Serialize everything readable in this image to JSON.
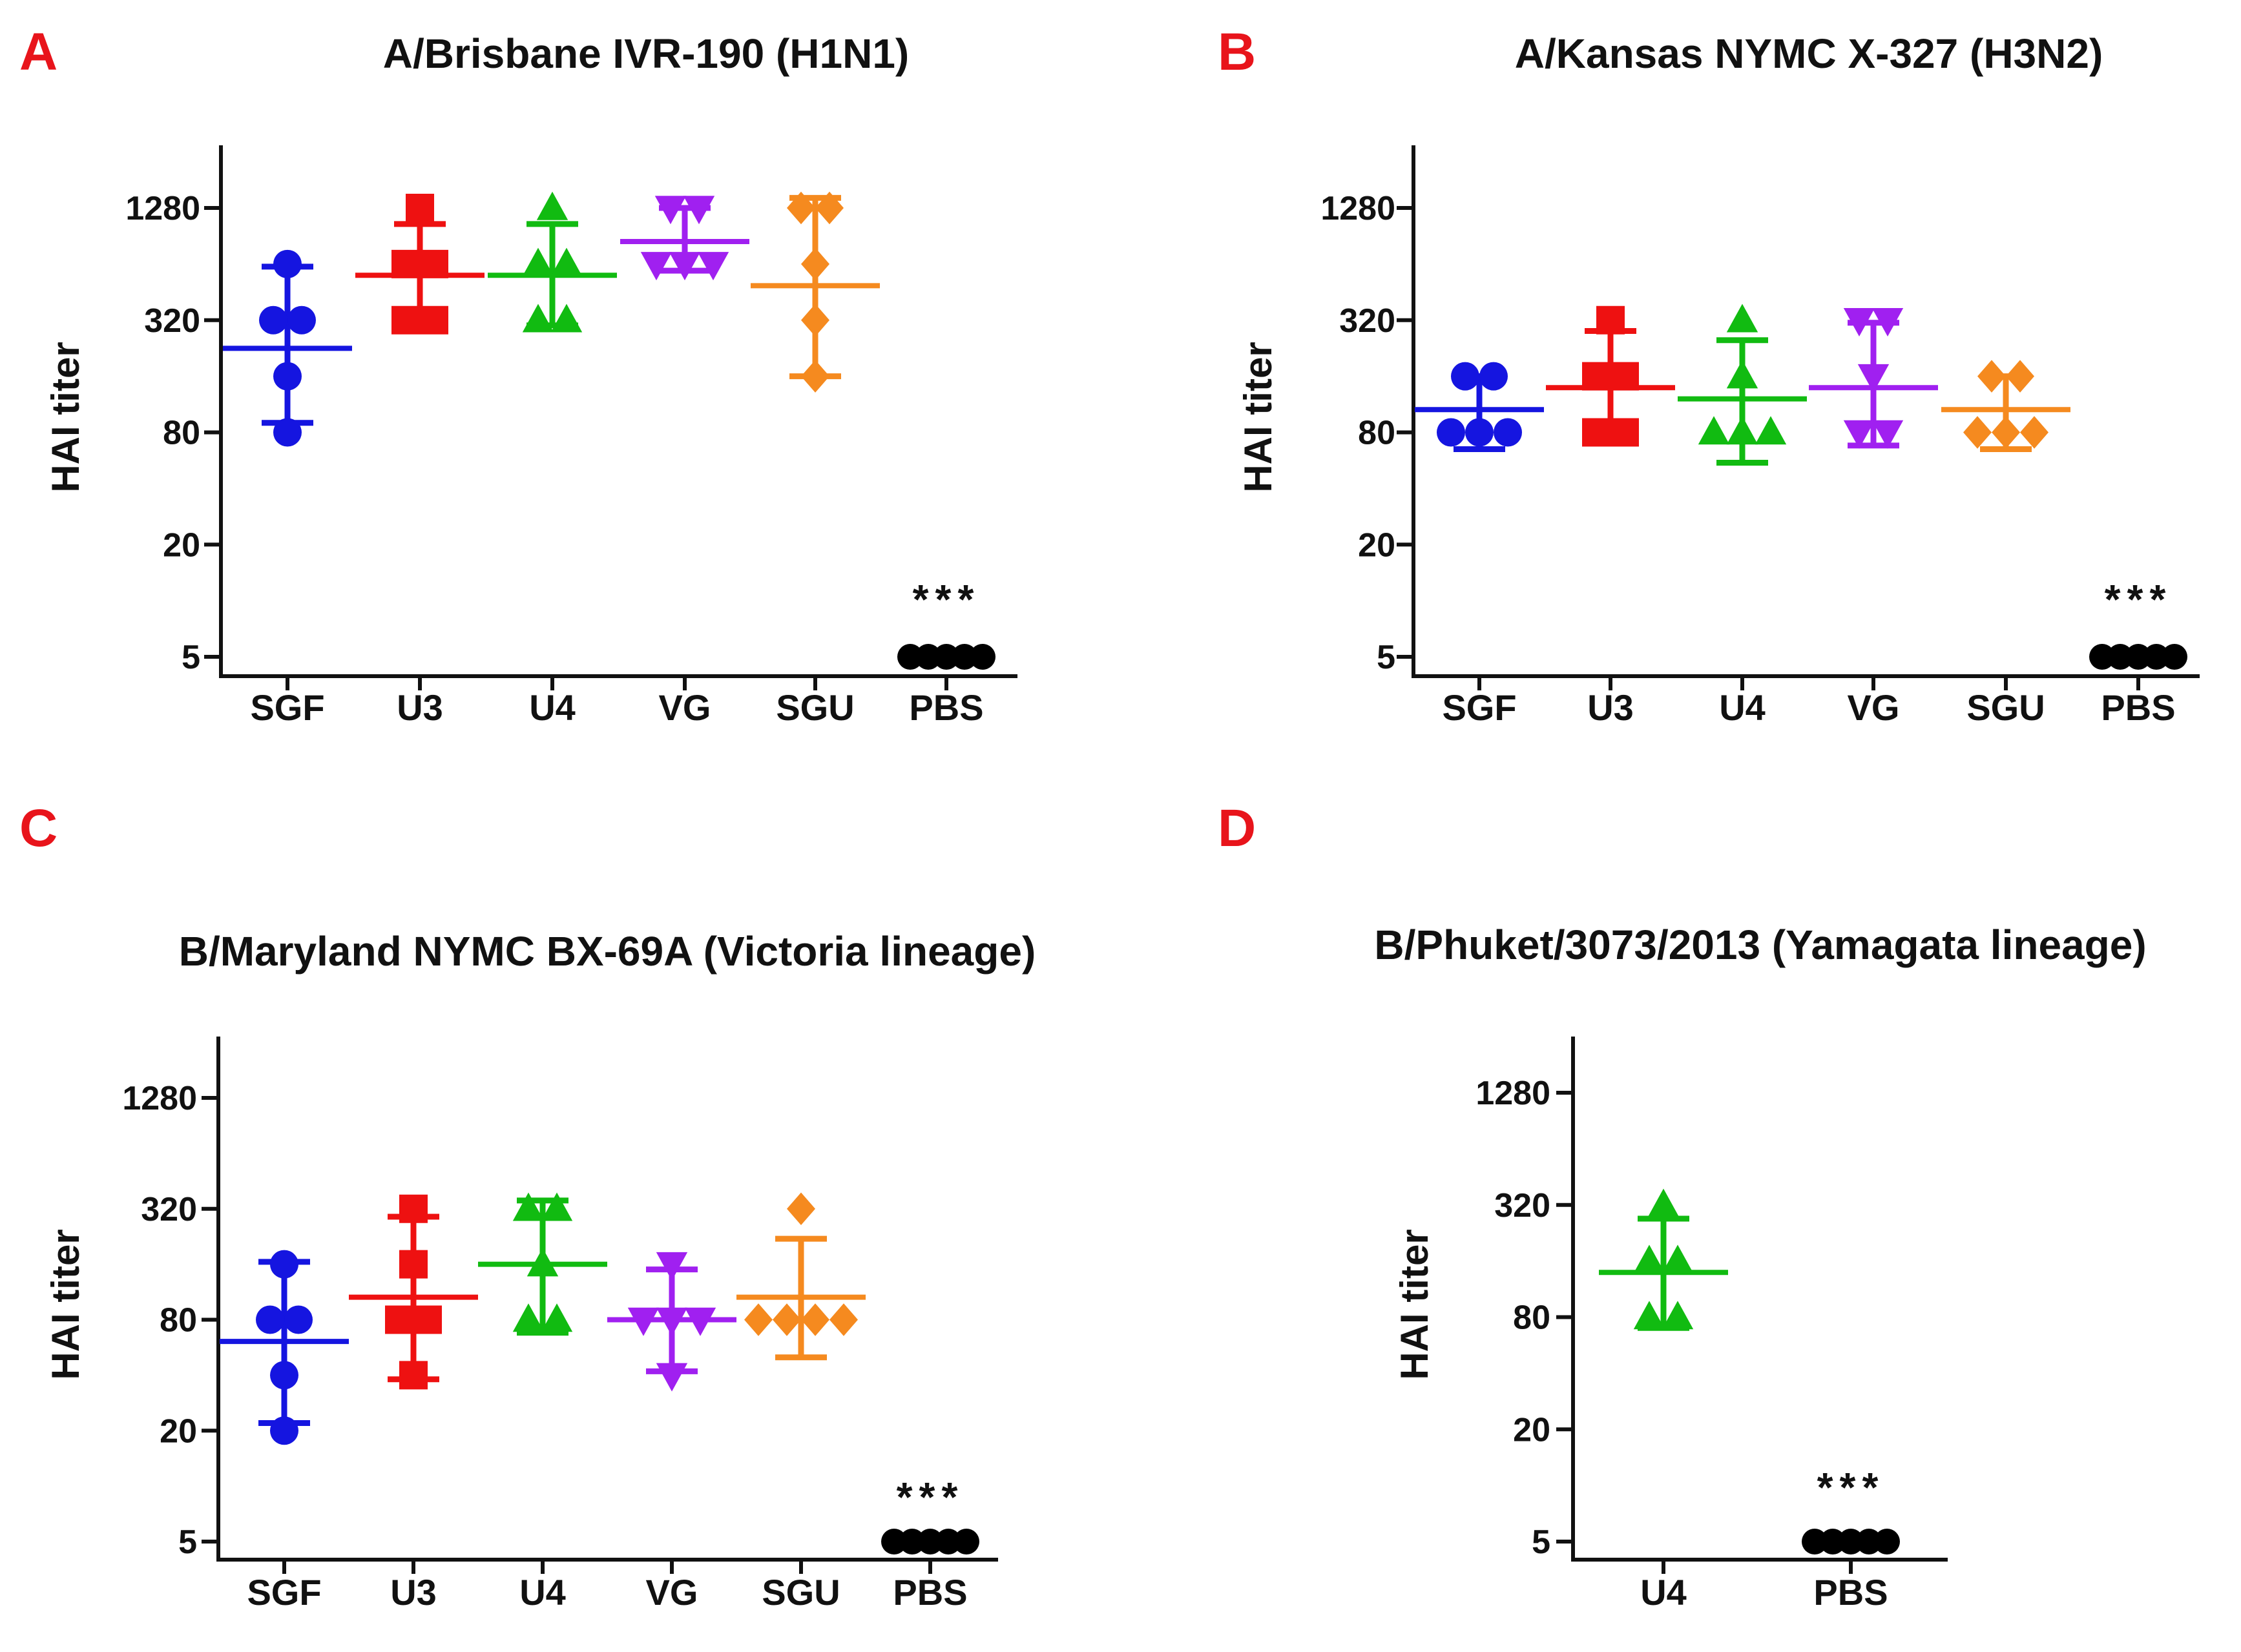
{
  "chart_data": [
    {
      "panel_label": "A",
      "type": "scatter",
      "title": "A/Brisbane IVR-190 (H1N1)",
      "xlabel": "",
      "ylabel": "HAI titer",
      "yscale": "log2",
      "ylim": [
        4,
        2300
      ],
      "yticks": [
        5,
        20,
        80,
        320,
        1280
      ],
      "ytick_labels": [
        "5",
        "20",
        "80",
        "320",
        "1280"
      ],
      "categories": [
        "SGF",
        "U3",
        "U4",
        "VG",
        "SGU",
        "PBS"
      ],
      "series": [
        {
          "name": "SGF",
          "color": "#1515e0",
          "marker": "circle",
          "points": [
            80,
            160,
            320,
            320,
            640
          ],
          "mean": 226,
          "sd_low": 90,
          "sd_high": 620
        },
        {
          "name": "U3",
          "color": "#ee1111",
          "marker": "square",
          "points": [
            320,
            320,
            640,
            640,
            1280
          ],
          "mean": 557,
          "sd_low": 320,
          "sd_high": 1050
        },
        {
          "name": "U4",
          "color": "#11bb11",
          "marker": "triangle",
          "points": [
            320,
            320,
            640,
            640,
            1280
          ],
          "mean": 557,
          "sd_low": 300,
          "sd_high": 1050
        },
        {
          "name": "VG",
          "color": "#a020f0",
          "marker": "triangle-down",
          "points": [
            640,
            640,
            640,
            1280,
            1280
          ],
          "mean": 845,
          "sd_low": 590,
          "sd_high": 1280
        },
        {
          "name": "SGU",
          "color": "#f58a1f",
          "marker": "diamond",
          "points": [
            160,
            320,
            640,
            1280,
            1280
          ],
          "mean": 490,
          "sd_low": 160,
          "sd_high": 1450
        },
        {
          "name": "PBS",
          "color": "#000000",
          "marker": "circle",
          "points": [
            5,
            5,
            5,
            5,
            5
          ],
          "mean": 5,
          "sd_low": 5,
          "sd_high": 5
        }
      ],
      "annotations": [
        {
          "category": "PBS",
          "text": "***"
        }
      ]
    },
    {
      "panel_label": "B",
      "type": "scatter",
      "title": "A/Kansas NYMC X-327 (H3N2)",
      "xlabel": "",
      "ylabel": "HAI titer",
      "yscale": "log2",
      "ylim": [
        4,
        2300
      ],
      "yticks": [
        5,
        20,
        80,
        320,
        1280
      ],
      "ytick_labels": [
        "5",
        "20",
        "80",
        "320",
        "1280"
      ],
      "categories": [
        "SGF",
        "U3",
        "U4",
        "VG",
        "SGU",
        "PBS"
      ],
      "series": [
        {
          "name": "SGF",
          "color": "#1515e0",
          "marker": "circle",
          "points": [
            80,
            80,
            80,
            160,
            160
          ],
          "mean": 106,
          "sd_low": 65,
          "sd_high": 160
        },
        {
          "name": "U3",
          "color": "#ee1111",
          "marker": "square",
          "points": [
            80,
            80,
            160,
            160,
            320
          ],
          "mean": 139,
          "sd_low": 70,
          "sd_high": 280
        },
        {
          "name": "U4",
          "color": "#11bb11",
          "marker": "triangle",
          "points": [
            80,
            80,
            80,
            160,
            320
          ],
          "mean": 121,
          "sd_low": 55,
          "sd_high": 250
        },
        {
          "name": "VG",
          "color": "#a020f0",
          "marker": "triangle-down",
          "points": [
            80,
            80,
            160,
            320,
            320
          ],
          "mean": 139,
          "sd_low": 68,
          "sd_high": 310
        },
        {
          "name": "SGU",
          "color": "#f58a1f",
          "marker": "diamond",
          "points": [
            80,
            80,
            80,
            160,
            160
          ],
          "mean": 106,
          "sd_low": 65,
          "sd_high": 160
        },
        {
          "name": "PBS",
          "color": "#000000",
          "marker": "circle",
          "points": [
            5,
            5,
            5,
            5,
            5
          ],
          "mean": 5,
          "sd_low": 5,
          "sd_high": 5
        }
      ],
      "annotations": [
        {
          "category": "PBS",
          "text": "***"
        }
      ]
    },
    {
      "panel_label": "C",
      "type": "scatter",
      "title": "B/Maryland NYMC BX-69A (Victoria lineage)",
      "xlabel": "",
      "ylabel": "HAI titer",
      "yscale": "log2",
      "ylim": [
        4,
        2300
      ],
      "yticks": [
        5,
        20,
        80,
        320,
        1280
      ],
      "ytick_labels": [
        "5",
        "20",
        "80",
        "320",
        "1280"
      ],
      "categories": [
        "SGF",
        "U3",
        "U4",
        "VG",
        "SGU",
        "PBS"
      ],
      "series": [
        {
          "name": "SGF",
          "color": "#1515e0",
          "marker": "circle",
          "points": [
            20,
            40,
            80,
            80,
            160
          ],
          "mean": 61,
          "sd_low": 22,
          "sd_high": 165
        },
        {
          "name": "U3",
          "color": "#ee1111",
          "marker": "square",
          "points": [
            40,
            80,
            80,
            160,
            320
          ],
          "mean": 106,
          "sd_low": 38,
          "sd_high": 290
        },
        {
          "name": "U4",
          "color": "#11bb11",
          "marker": "triangle",
          "points": [
            80,
            80,
            160,
            320,
            320
          ],
          "mean": 160,
          "sd_low": 68,
          "sd_high": 355
        },
        {
          "name": "VG",
          "color": "#a020f0",
          "marker": "triangle-down",
          "points": [
            40,
            80,
            80,
            80,
            160
          ],
          "mean": 80,
          "sd_low": 42,
          "sd_high": 150
        },
        {
          "name": "SGU",
          "color": "#f58a1f",
          "marker": "diamond",
          "points": [
            80,
            80,
            80,
            80,
            320
          ],
          "mean": 106,
          "sd_low": 50,
          "sd_high": 220
        },
        {
          "name": "PBS",
          "color": "#000000",
          "marker": "circle",
          "points": [
            5,
            5,
            5,
            5,
            5
          ],
          "mean": 5,
          "sd_low": 5,
          "sd_high": 5
        }
      ],
      "annotations": [
        {
          "category": "PBS",
          "text": "***"
        }
      ]
    },
    {
      "panel_label": "D",
      "type": "scatter",
      "title": "B/Phuket/3073/2013 (Yamagata lineage)",
      "xlabel": "",
      "ylabel": "HAI titer",
      "yscale": "log2",
      "ylim": [
        4,
        2300
      ],
      "yticks": [
        5,
        20,
        80,
        320,
        1280
      ],
      "ytick_labels": [
        "5",
        "20",
        "80",
        "320",
        "1280"
      ],
      "categories": [
        "U4",
        "PBS"
      ],
      "series": [
        {
          "name": "U4",
          "color": "#11bb11",
          "marker": "triangle",
          "points": [
            80,
            80,
            160,
            160,
            320
          ],
          "mean": 139,
          "sd_low": 70,
          "sd_high": 270
        },
        {
          "name": "PBS",
          "color": "#000000",
          "marker": "circle",
          "points": [
            5,
            5,
            5,
            5,
            5
          ],
          "mean": 5,
          "sd_low": 5,
          "sd_high": 5
        }
      ],
      "annotations": [
        {
          "category": "PBS",
          "text": "***"
        }
      ]
    }
  ]
}
